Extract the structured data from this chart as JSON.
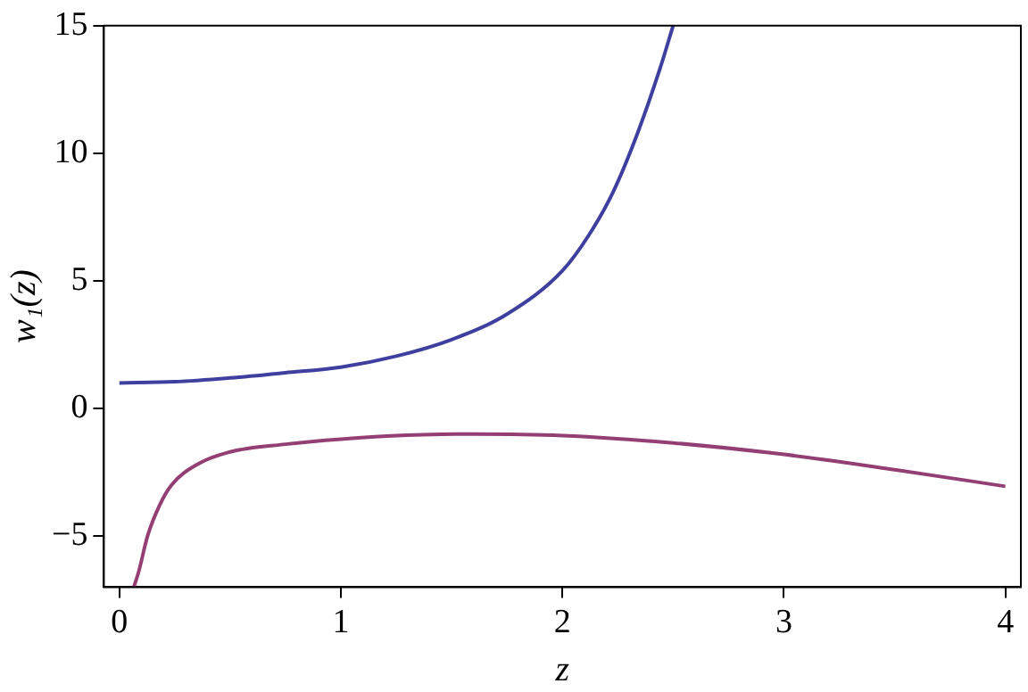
{
  "chart_data": {
    "type": "line",
    "xlabel": "z",
    "ylabel": "w₁(z)",
    "xlim": [
      -0.07,
      4.07
    ],
    "ylim": [
      -7,
      15
    ],
    "xticks": [
      0,
      1,
      2,
      3,
      4
    ],
    "yticks": [
      -5,
      0,
      5,
      10,
      15
    ],
    "grid": false,
    "legend": false,
    "marker": "none",
    "series": [
      {
        "color": "#3f3f9f",
        "x": [
          0,
          0.25,
          0.5,
          0.75,
          1,
          1.25,
          1.5,
          1.75,
          2,
          2.12,
          2.23,
          2.34,
          2.44,
          2.5
        ],
        "values": [
          1,
          1.05,
          1.2,
          1.4,
          1.62,
          2.05,
          2.7,
          3.7,
          5.4,
          6.8,
          8.5,
          10.8,
          13.3,
          15
        ]
      },
      {
        "color": "#943f74",
        "x": [
          0.065,
          0.087,
          0.127,
          0.181,
          0.235,
          0.35,
          0.5,
          0.75,
          1,
          1.3,
          1.6,
          2,
          2.5,
          3,
          3.5,
          4
        ],
        "values": [
          -7,
          -6.4,
          -5,
          -3.8,
          -3.0,
          -2.2,
          -1.7,
          -1.4,
          -1.2,
          -1.05,
          -1,
          -1.06,
          -1.35,
          -1.8,
          -2.4,
          -3.05
        ]
      }
    ]
  }
}
